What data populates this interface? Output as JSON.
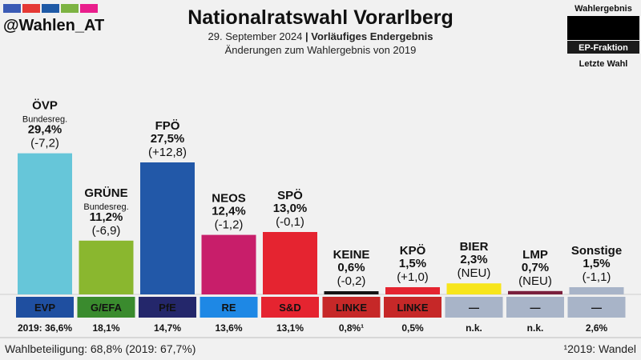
{
  "header": {
    "title": "Nationalratswahl Vorarlberg",
    "subtitle_date": "29. September 2024",
    "subtitle_separator": "|",
    "subtitle_status": "Vorläufiges Endergebnis",
    "subtitle_changes": "Änderungen zum Wahlergebnis von 2019",
    "handle": "@Wahlen_AT",
    "handle_colors": [
      "#3b5bb5",
      "#e53935",
      "#1f5aa6",
      "#7cb342",
      "#e91e8c"
    ]
  },
  "legend_box": {
    "title": "Wahlergebnis",
    "ep_label": "EP-Fraktion",
    "last_label": "Letzte Wahl"
  },
  "footer": {
    "turnout": "Wahlbeteiligung: 68,8% (2019: 67,7%)",
    "footnote": "¹2019: Wandel"
  },
  "chart_data": {
    "type": "bar",
    "title": "Nationalratswahl Vorarlberg",
    "ylim": [
      0,
      35
    ],
    "categories": [
      "ÖVP",
      "GRÜNE",
      "FPÖ",
      "NEOS",
      "SPÖ",
      "KEINE",
      "KPÖ",
      "BIER",
      "LMP",
      "Sonstige"
    ],
    "values": [
      29.4,
      11.2,
      27.5,
      12.4,
      13.0,
      0.6,
      1.5,
      2.3,
      0.7,
      1.5
    ],
    "value_labels": [
      "29,4%",
      "11,2%",
      "27,5%",
      "12,4%",
      "13,0%",
      "0,6%",
      "1,5%",
      "2,3%",
      "0,7%",
      "1,5%"
    ],
    "changes": [
      "(-7,2)",
      "(-6,9)",
      "(+12,8)",
      "(-1,2)",
      "(-0,1)",
      "(-0,2)",
      "(+1,0)",
      "(NEU)",
      "(NEU)",
      "(-1,1)"
    ],
    "change_colors": [
      "#e53935",
      "#e53935",
      "#1aa51a",
      "#e53935",
      "#e53935",
      "#e53935",
      "#1aa51a",
      "#f5a300",
      "#f5a300",
      "#e53935"
    ],
    "notes": [
      "Bundesreg.",
      "Bundesreg.",
      "",
      "",
      "",
      "",
      "",
      "",
      "",
      ""
    ],
    "bar_colors": [
      "#66c6d9",
      "#8ab72f",
      "#2258a8",
      "#c81e6a",
      "#e52430",
      "#151515",
      "#e52430",
      "#f7e51b",
      "#7a1f3d",
      "#a8b4c8"
    ],
    "ep_groups": [
      "EVP",
      "G/EFA",
      "PfE",
      "RE",
      "S&D",
      "LINKE",
      "LINKE",
      "—",
      "—",
      "—"
    ],
    "ep_colors": [
      "#1f4fa0",
      "#3a8b2e",
      "#24276b",
      "#1e88e5",
      "#e52430",
      "#c62828",
      "#c62828",
      "#a8b4c8",
      "#a8b4c8",
      "#a8b4c8"
    ],
    "previous_labels": [
      "2019: 36,6%",
      "18,1%",
      "14,7%",
      "13,6%",
      "13,1%",
      "0,8%¹",
      "0,5%",
      "n.k.",
      "n.k.",
      "2,6%"
    ]
  }
}
